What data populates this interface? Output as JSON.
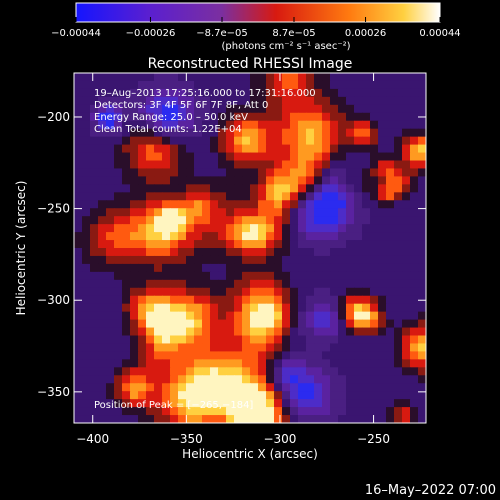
{
  "chart_data": {
    "type": "heatmap",
    "title": "Reconstructed RHESSI Image",
    "xlabel": "Heliocentric X (arcsec)",
    "ylabel": "Heliocentric Y (arcsec)",
    "xlim": [
      -410,
      -222
    ],
    "ylim": [
      -367,
      -176
    ],
    "x_ticks": [
      {
        "value": -400,
        "label": "−400"
      },
      {
        "value": -350,
        "label": "−350"
      },
      {
        "value": -300,
        "label": "−300"
      },
      {
        "value": -250,
        "label": "−250"
      }
    ],
    "y_ticks": [
      {
        "value": -200,
        "label": "−200"
      },
      {
        "value": -250,
        "label": "−250"
      },
      {
        "value": -300,
        "label": "−300"
      },
      {
        "value": -350,
        "label": "−350"
      }
    ],
    "colorbar": {
      "range": [
        -0.00044,
        0.00044
      ],
      "ticks": [
        {
          "value": -0.00044,
          "label": "−0.00044"
        },
        {
          "value": -0.00026,
          "label": "−0.00026"
        },
        {
          "value": -8.7e-05,
          "label": "−8.7e−05"
        },
        {
          "value": 8.7e-05,
          "label": "8.7e−05"
        },
        {
          "value": 0.00026,
          "label": "0.00026"
        },
        {
          "value": 0.00044,
          "label": "0.00044"
        }
      ],
      "units_label": "(photons cm⁻² s⁻¹ asec⁻²)",
      "colormap": [
        "#1515ff",
        "#5a1fd0",
        "#7b2fa0",
        "#d81a10",
        "#ff7a10",
        "#ffd040",
        "#ffffff"
      ]
    },
    "annotations": [
      "19–Aug–2013 17:25:16.000 to 17:31:16.000",
      "Detectors: 3F 4F 5F 6F 7F 8F, Att 0",
      "Energy Range: 25.0 – 50.0 keV",
      "Clean     Total counts: 1.22E+04"
    ],
    "peak_label": "Position of Peak = [−265,−184]",
    "peak": {
      "x": -265,
      "y": -184
    }
  },
  "footer": {
    "timestamp": "16–May–2022 07:00"
  }
}
